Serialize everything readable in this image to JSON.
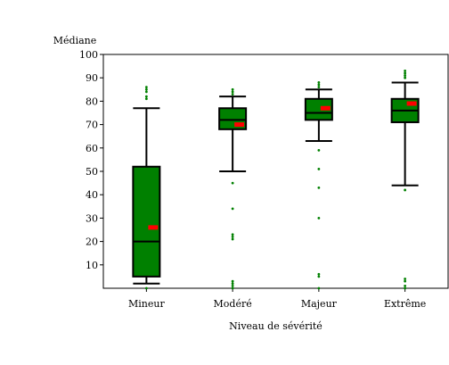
{
  "chart_data": {
    "type": "box",
    "ylabel": "Médiane",
    "xlabel": "Niveau de sévérité",
    "ylim": [
      0,
      100
    ],
    "yticks": [
      10,
      20,
      30,
      40,
      50,
      60,
      70,
      80,
      90,
      100
    ],
    "categories": [
      "Mineur",
      "Modéré",
      "Majeur",
      "Extrême"
    ],
    "boxes": [
      {
        "whisker_low": 2,
        "q1": 5,
        "median": 20,
        "q3": 52,
        "whisker_high": 77,
        "mean": 26,
        "outliers": [
          0,
          81,
          82,
          84,
          85,
          86
        ]
      },
      {
        "whisker_low": 50,
        "q1": 68,
        "median": 72,
        "q3": 77,
        "whisker_high": 82,
        "mean": 70,
        "outliers": [
          0,
          1,
          2,
          3,
          21,
          22,
          23,
          34,
          45,
          83,
          84,
          85
        ]
      },
      {
        "whisker_low": 63,
        "q1": 72,
        "median": 75,
        "q3": 81,
        "whisker_high": 85,
        "mean": 77,
        "outliers": [
          0,
          5,
          6,
          30,
          43,
          51,
          59,
          86,
          87,
          88
        ]
      },
      {
        "whisker_low": 44,
        "q1": 71,
        "median": 76,
        "q3": 81,
        "whisker_high": 88,
        "mean": 79,
        "outliers": [
          0,
          1,
          3,
          4,
          42,
          90,
          91,
          92,
          93
        ]
      }
    ],
    "colors": {
      "box": "#008000",
      "median": "#000000",
      "mean": "#ff0000",
      "outlier": "#008000"
    },
    "grid": false
  }
}
